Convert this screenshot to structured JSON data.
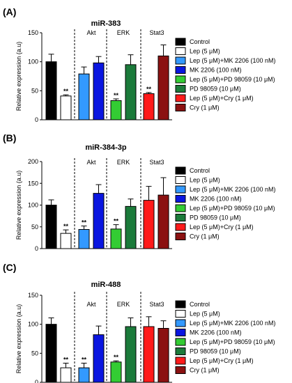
{
  "chart_data": [
    {
      "type": "bar",
      "panel": "(A)",
      "title": "miR-383",
      "ylabel": "Relative expression (a.u)",
      "ylim": [
        0,
        150
      ],
      "yticks": [
        0,
        50,
        100,
        150
      ],
      "groups": [
        "Akt",
        "ERK",
        "Stat3"
      ],
      "categories": [
        "Control",
        "Lep (5 μM)",
        "Lep (5 μM)+MK 2206 (100 nM)",
        "MK 2206 (100 nM)",
        "Lep (5 μM)+PD 98059 (10 μM)",
        "PD 98059 (10 μM)",
        "Lep (5 μM)+Cry (1 μM)",
        "Cry (1 μM)"
      ],
      "values": [
        100,
        41,
        79,
        98,
        33,
        95,
        45,
        110
      ],
      "errors": [
        13,
        2,
        12,
        11,
        3,
        17,
        2,
        19
      ],
      "significance": [
        "",
        "**",
        "",
        "",
        "**",
        "",
        "**",
        ""
      ]
    },
    {
      "type": "bar",
      "panel": "(B)",
      "title": "miR-384-3p",
      "ylabel": "Relative expression (a.u)",
      "ylim": [
        0,
        200
      ],
      "yticks": [
        0,
        50,
        100,
        150,
        200
      ],
      "groups": [
        "Akt",
        "ERK",
        "Stat3"
      ],
      "categories": [
        "Control",
        "Lep (5 μM)",
        "Lep (5 μM)+MK 2206 (100 nM)",
        "MK 2206 (100 nM)",
        "Lep (5 μM)+PD 98059 (10 μM)",
        "PD 98059 (10 μM)",
        "Lep (5 μM)+Cry (1 μM)",
        "Cry (1 μM)"
      ],
      "values": [
        100,
        35,
        44,
        127,
        45,
        97,
        111,
        123
      ],
      "errors": [
        12,
        8,
        8,
        20,
        10,
        17,
        32,
        40
      ],
      "significance": [
        "",
        "**",
        "**",
        "",
        "**",
        "",
        "",
        ""
      ]
    },
    {
      "type": "bar",
      "panel": "(C)",
      "title": "miR-488",
      "ylabel": "Relative expression (a.u)",
      "ylim": [
        0,
        150
      ],
      "yticks": [
        0,
        50,
        100,
        150
      ],
      "groups": [
        "Akt",
        "ERK",
        "Stat3"
      ],
      "categories": [
        "Control",
        "Lep (5 μM)",
        "Lep (5 μM)+MK 2206 (100 nM)",
        "MK 2206 (100 nM)",
        "Lep (5 μM)+PD 98059 (10 μM)",
        "PD 98059 (10 μM)",
        "Lep (5 μM)+Cry (1 μM)",
        "Cry (1 μM)"
      ],
      "values": [
        100,
        25,
        25,
        82,
        35,
        96,
        96,
        93
      ],
      "errors": [
        11,
        8,
        8,
        15,
        2,
        15,
        17,
        13
      ],
      "significance": [
        "",
        "**",
        "**",
        "",
        "**",
        "",
        "",
        ""
      ]
    }
  ],
  "colors": [
    "#000000",
    "#ffffff",
    "#3399ff",
    "#0a16e0",
    "#33cc33",
    "#1b7a3a",
    "#ff1a1a",
    "#8b1111"
  ]
}
